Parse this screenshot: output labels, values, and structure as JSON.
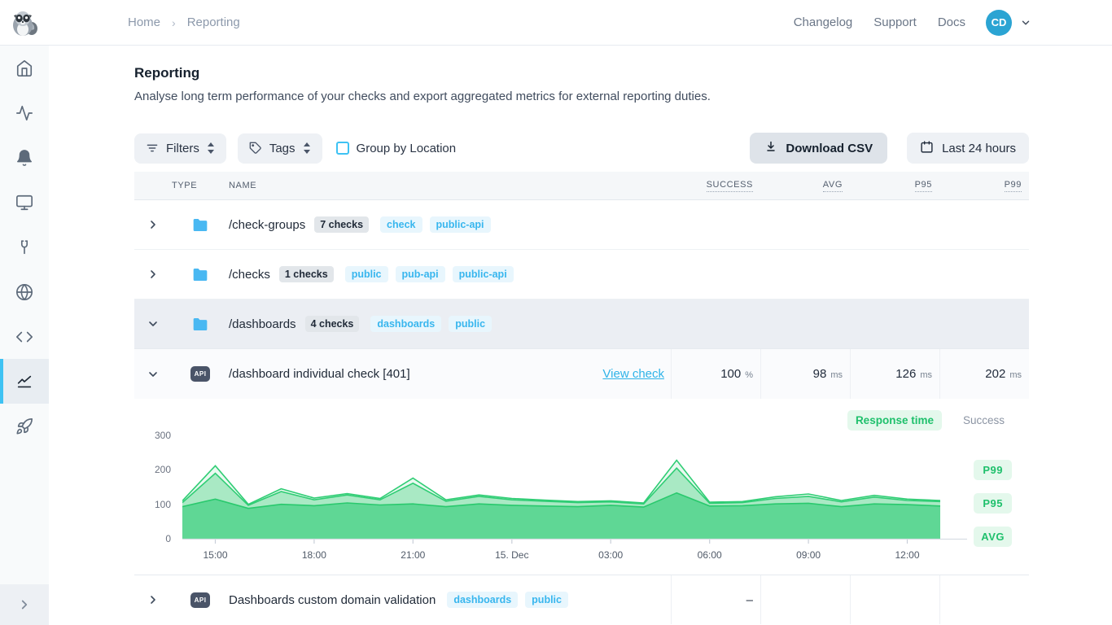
{
  "navbar": {
    "breadcrumb": {
      "items": [
        "Home",
        "Reporting"
      ]
    },
    "links": [
      "Changelog",
      "Support",
      "Docs"
    ],
    "avatar_initials": "CD"
  },
  "sidebar": {
    "items": [
      {
        "icon": "home-icon"
      },
      {
        "icon": "activity-icon"
      },
      {
        "icon": "bell-icon"
      },
      {
        "icon": "monitor-icon"
      },
      {
        "icon": "wrench-icon"
      },
      {
        "icon": "globe-icon"
      },
      {
        "icon": "code-icon"
      },
      {
        "icon": "line-chart-icon",
        "active": true
      },
      {
        "icon": "rocket-icon"
      }
    ]
  },
  "page": {
    "title": "Reporting",
    "description": "Analyse long term performance of your checks and export aggregated metrics for external reporting duties."
  },
  "toolbar": {
    "filters_label": "Filters",
    "tags_label": "Tags",
    "group_by_location_label": "Group by Location",
    "group_by_location_checked": false,
    "download_csv_label": "Download CSV",
    "date_range_label": "Last 24 hours"
  },
  "table": {
    "headers": {
      "type": "TYPE",
      "name": "NAME",
      "success": "SUCCESS",
      "avg": "AVG",
      "p95": "P95",
      "p99": "P99"
    },
    "rows": [
      {
        "kind": "group",
        "name": "/check-groups",
        "count": "7 checks",
        "tags": [
          "check",
          "public-api"
        ],
        "expanded": false
      },
      {
        "kind": "group",
        "name": "/checks",
        "count": "1 checks",
        "tags": [
          "public",
          "pub-api",
          "public-api"
        ],
        "expanded": false
      },
      {
        "kind": "group",
        "name": "/dashboards",
        "count": "4 checks",
        "tags": [
          "dashboards",
          "public"
        ],
        "expanded": true
      },
      {
        "kind": "check",
        "type_badge": "API",
        "name": "/dashboard individual check [401]",
        "link": "View check",
        "expanded": true,
        "metrics": {
          "success": {
            "value": "100",
            "unit": "%"
          },
          "avg": {
            "value": "98",
            "unit": "ms"
          },
          "p95": {
            "value": "126",
            "unit": "ms"
          },
          "p99": {
            "value": "202",
            "unit": "ms"
          }
        }
      },
      {
        "kind": "check",
        "type_badge": "API",
        "name": "Dashboards custom domain validation",
        "tags": [
          "dashboards",
          "public"
        ],
        "expanded": false,
        "metrics": {
          "success": {
            "value": "–",
            "unit": ""
          }
        }
      }
    ]
  },
  "chart_data": {
    "type": "area",
    "title": "Response time",
    "toggle": [
      "Response time",
      "Success"
    ],
    "active_toggle": "Response time",
    "legend": [
      "P99",
      "P95",
      "AVG"
    ],
    "legend_position": "right",
    "unit": "ms",
    "grid": false,
    "ylim": [
      0,
      300
    ],
    "yticks": [
      0,
      100,
      200,
      300
    ],
    "n_points": 24,
    "x_start": "14:00",
    "xticks": [
      "15:00",
      "18:00",
      "21:00",
      "15. Dec",
      "03:00",
      "06:00",
      "09:00",
      "12:00"
    ],
    "xtick_indices": [
      1,
      4,
      7,
      10,
      13,
      16,
      19,
      22
    ],
    "series": [
      {
        "name": "P99",
        "fill": "#e9f9f0",
        "stroke": "#2fcd74",
        "values": [
          110,
          212,
          100,
          145,
          118,
          131,
          117,
          176,
          113,
          127,
          117,
          112,
          108,
          110,
          104,
          228,
          106,
          108,
          122,
          130,
          111,
          126,
          115,
          111
        ]
      },
      {
        "name": "P95",
        "fill": "#a9e9c4",
        "stroke": "#2fcd74",
        "values": [
          105,
          190,
          97,
          137,
          113,
          127,
          113,
          161,
          109,
          123,
          113,
          109,
          105,
          107,
          101,
          205,
          103,
          105,
          117,
          123,
          107,
          121,
          111,
          108
        ]
      },
      {
        "name": "AVG",
        "fill": "#5fd795",
        "stroke": "#29c96d",
        "values": [
          93,
          115,
          88,
          100,
          96,
          104,
          98,
          101,
          93,
          101,
          97,
          95,
          93,
          97,
          92,
          133,
          95,
          96,
          101,
          103,
          93,
          101,
          99,
          95
        ]
      }
    ]
  },
  "colors": {
    "accent_cyan": "#3ec2f3",
    "green": "#1fc06c",
    "avatar_blue": "#2ba4d3",
    "tag_text": "#38b6ee",
    "link": "#2fb3e8"
  }
}
